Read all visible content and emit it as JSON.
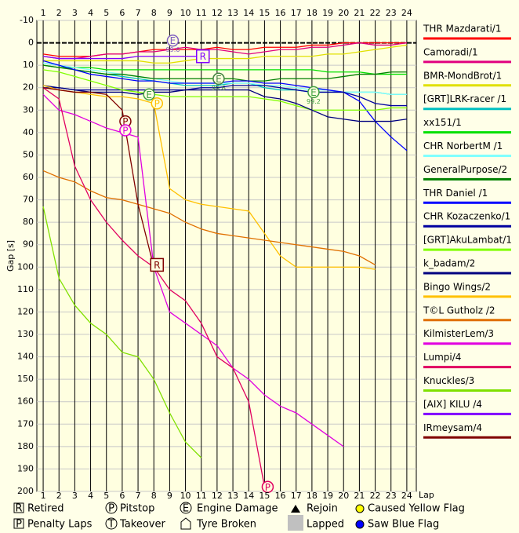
{
  "chart_data": {
    "type": "line",
    "y_label": "Gap [s]",
    "x_label": "Lap",
    "xlim": [
      0.6,
      24.6
    ],
    "ylim": [
      -10,
      200
    ],
    "xticks": [
      1,
      2,
      3,
      4,
      5,
      6,
      7,
      8,
      9,
      10,
      11,
      12,
      13,
      14,
      15,
      16,
      17,
      18,
      19,
      20,
      21,
      22,
      23,
      24
    ],
    "yticks": [
      -10,
      0,
      10,
      20,
      30,
      40,
      50,
      60,
      70,
      80,
      90,
      100,
      110,
      120,
      130,
      140,
      150,
      160,
      170,
      180,
      190,
      200
    ],
    "grid": true,
    "x": [
      1,
      2,
      3,
      4,
      5,
      6,
      7,
      8,
      9,
      10,
      11,
      12,
      13,
      14,
      15,
      16,
      17,
      18,
      19,
      20,
      21,
      22,
      23,
      24
    ],
    "series": [
      {
        "name": "THR Mazdarati/1",
        "color": "#ff0000",
        "values": [
          5,
          6,
          6,
          6,
          5,
          5,
          4,
          3,
          3,
          3,
          3,
          2,
          3,
          3,
          2,
          2,
          2,
          1,
          1,
          0,
          0,
          0,
          0,
          0
        ]
      },
      {
        "name": "Camoradi/1",
        "color": "#e0007f",
        "values": [
          6,
          7,
          7,
          6,
          5,
          5,
          4,
          4,
          3,
          2,
          3,
          3,
          4,
          5,
          4,
          3,
          3,
          2,
          2,
          1,
          0,
          1,
          1,
          0
        ]
      },
      {
        "name": "BMR-MondBrot/1",
        "color": "#e0e000",
        "values": [
          8,
          8,
          8,
          8,
          8,
          8,
          8,
          9,
          9,
          8,
          7,
          7,
          7,
          7,
          6,
          6,
          6,
          6,
          5,
          5,
          4,
          3,
          2,
          1
        ]
      },
      {
        "name": "[GRT]LRK-racer /1",
        "color": "#00c0c0",
        "values": [
          9,
          10,
          12,
          13,
          14,
          15,
          16,
          17,
          18,
          19,
          19,
          19,
          18,
          18,
          20,
          21,
          21,
          22,
          22,
          22,
          22,
          22,
          23,
          23
        ]
      },
      {
        "name": "xx151/1",
        "color": "#00e000",
        "values": [
          10,
          11,
          11,
          11,
          12,
          12,
          12,
          12,
          12,
          12,
          12,
          12,
          12,
          12,
          12,
          12,
          12,
          12,
          13,
          13,
          13,
          14,
          14,
          14
        ]
      },
      {
        "name": "CHR NorbertM /1",
        "color": "#80ffff",
        "values": [
          9,
          10,
          11,
          12,
          13,
          14,
          15,
          16,
          17,
          18,
          18,
          18,
          18,
          18,
          19,
          19,
          20,
          21,
          21,
          22,
          22,
          22,
          23,
          23
        ]
      },
      {
        "name": "GeneralPurpose/2",
        "color": "#008000",
        "values": [
          10,
          11,
          12,
          13,
          14,
          14,
          15,
          16,
          16,
          16,
          16,
          16,
          16,
          17,
          17,
          16,
          16,
          16,
          16,
          15,
          14,
          14,
          13,
          13
        ]
      },
      {
        "name": "THR Daniel /1",
        "color": "#0000ff",
        "values": [
          8,
          10,
          12,
          14,
          15,
          16,
          17,
          17,
          18,
          18,
          18,
          18,
          17,
          17,
          18,
          18,
          19,
          20,
          21,
          22,
          26,
          35,
          42,
          48
        ]
      },
      {
        "name": "CHR Kozaczenko/1",
        "color": "#0000a0",
        "values": [
          20,
          20,
          21,
          21,
          21,
          21,
          21,
          21,
          21,
          21,
          20,
          20,
          19,
          19,
          19,
          20,
          21,
          22,
          22,
          22,
          24,
          27,
          28,
          28
        ]
      },
      {
        "name": "[GRT]AkuLambat/1",
        "color": "#80ff00",
        "values": [
          12,
          13,
          15,
          17,
          19,
          21,
          22,
          23,
          24,
          24,
          24,
          24,
          24,
          24,
          25,
          26,
          28,
          30,
          30,
          30,
          30,
          30,
          29,
          29
        ]
      },
      {
        "name": "k_badam/2",
        "color": "#000080",
        "values": [
          19,
          20,
          21,
          22,
          22,
          22,
          23,
          22,
          22,
          21,
          21,
          21,
          21,
          21,
          24,
          25,
          27,
          30,
          33,
          34,
          35,
          35,
          35,
          34
        ]
      },
      {
        "name": "Bingo Wings/2",
        "color": "#ffc000",
        "values": [
          19,
          21,
          22,
          23,
          24,
          24,
          25,
          27,
          65,
          70,
          72,
          73,
          74,
          75,
          85,
          95,
          100,
          100,
          100,
          100,
          100,
          101,
          null,
          null
        ]
      },
      {
        "name": "T©L Gutholz /2",
        "color": "#e07000",
        "values": [
          57,
          60,
          62,
          66,
          69,
          70,
          72,
          74,
          76,
          80,
          83,
          85,
          86,
          87,
          88,
          89,
          90,
          91,
          92,
          93,
          95,
          99,
          null,
          null
        ]
      },
      {
        "name": "KilmisterLem/3",
        "color": "#e000e0",
        "values": [
          23,
          30,
          32,
          35,
          38,
          40,
          42,
          100,
          120,
          125,
          130,
          135,
          145,
          150,
          157,
          162,
          165,
          170,
          175,
          180,
          null,
          null,
          null,
          null
        ]
      },
      {
        "name": "Lumpi/4",
        "color": "#e00060",
        "values": [
          20,
          25,
          55,
          70,
          80,
          88,
          95,
          100,
          110,
          115,
          125,
          140,
          145,
          160,
          198,
          null,
          null,
          null,
          null,
          null,
          null,
          null,
          null,
          null
        ]
      },
      {
        "name": "Knuckles/3",
        "color": "#80e000",
        "values": [
          73,
          105,
          117,
          125,
          130,
          138,
          140,
          150,
          165,
          178,
          185,
          null,
          null,
          null,
          null,
          null,
          null,
          null,
          null,
          null,
          null,
          null,
          null,
          null
        ]
      },
      {
        "name": "[AIX] KILU /4",
        "color": "#8000ff",
        "values": [
          6,
          7,
          7,
          7,
          7,
          7,
          6,
          6,
          6,
          6,
          6,
          null,
          null,
          null,
          null,
          null,
          null,
          null,
          null,
          null,
          null,
          null,
          null,
          null
        ]
      },
      {
        "name": "IRmeysam/4",
        "color": "#800000",
        "values": [
          20,
          21,
          22,
          22,
          23,
          30,
          72,
          100,
          null,
          null,
          null,
          null,
          null,
          null,
          null,
          null,
          null,
          null,
          null,
          null,
          null,
          null,
          null,
          null
        ]
      }
    ],
    "events": [
      {
        "lap": 9.2,
        "gap": -1,
        "symbol": "E",
        "color": "#8060c0",
        "note": "99.6"
      },
      {
        "lap": 11.1,
        "gap": 6,
        "symbol": "R",
        "color": "#8000ff"
      },
      {
        "lap": 12.1,
        "gap": 16,
        "symbol": "E",
        "color": "#408040",
        "note": "99.6"
      },
      {
        "lap": 7.7,
        "gap": 23,
        "symbol": "E",
        "color": "#40a040"
      },
      {
        "lap": 8.2,
        "gap": 27,
        "symbol": "P",
        "color": "#ffc000"
      },
      {
        "lap": 6.2,
        "gap": 35,
        "symbol": "P",
        "color": "#800000"
      },
      {
        "lap": 6.2,
        "gap": 39,
        "symbol": "P",
        "color": "#e000e0"
      },
      {
        "lap": 18.1,
        "gap": 22,
        "symbol": "E",
        "color": "#40a040",
        "note": "99.2"
      },
      {
        "lap": 8.2,
        "gap": 99,
        "symbol": "R",
        "color": "#800000"
      },
      {
        "lap": 15.2,
        "gap": 198,
        "symbol": "P",
        "color": "#e00060"
      }
    ],
    "legend_items": [
      {
        "symbol": "R",
        "label": "Retired"
      },
      {
        "symbol": "P",
        "label": "Pitstop"
      },
      {
        "symbol": "E",
        "label": "Engine Damage"
      },
      {
        "label": "Rejoin"
      },
      {
        "label": "Caused Yellow Flag"
      },
      {
        "symbol": "P",
        "label": "Penalty Laps"
      },
      {
        "symbol": "T",
        "label": "Takeover"
      },
      {
        "label": "Tyre Broken"
      },
      {
        "label": "Lapped"
      },
      {
        "label": "Saw Blue Flag"
      }
    ]
  }
}
